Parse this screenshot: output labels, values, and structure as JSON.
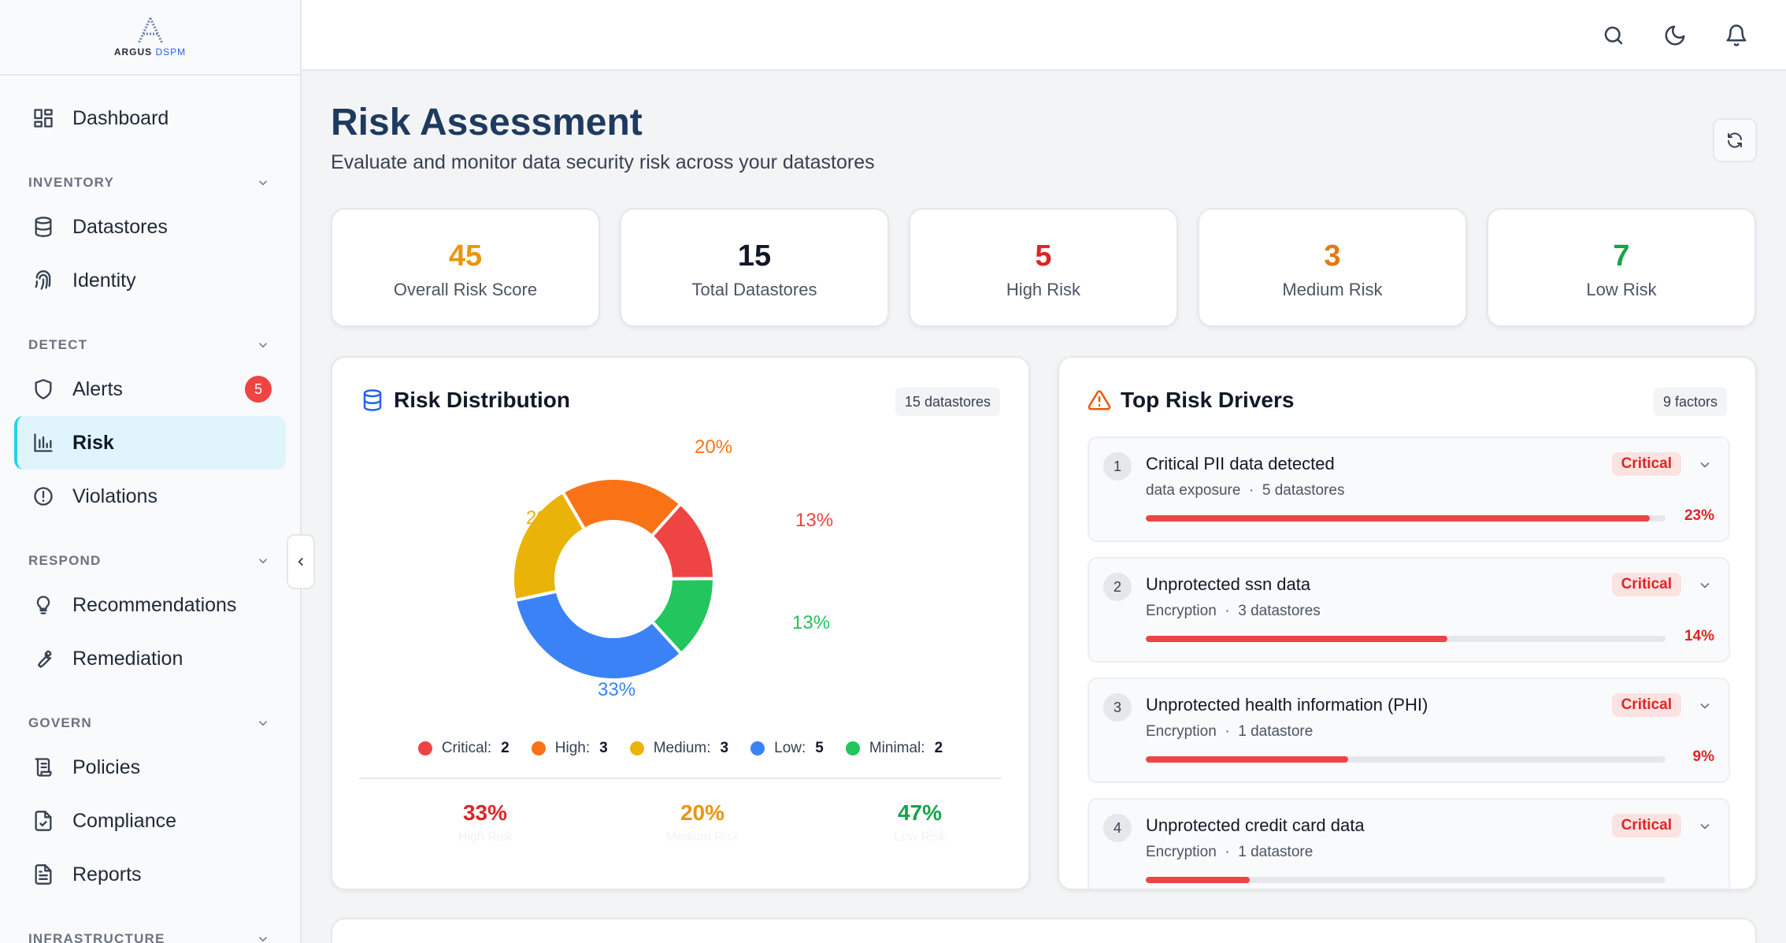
{
  "brand": {
    "name": "ARGUS",
    "suffix": "DSPM"
  },
  "sidebar": {
    "dashboard": {
      "label": "Dashboard"
    },
    "sections": [
      {
        "title": "INVENTORY",
        "items": [
          {
            "label": "Datastores",
            "icon": "database-icon"
          },
          {
            "label": "Identity",
            "icon": "fingerprint-icon"
          }
        ]
      },
      {
        "title": "DETECT",
        "items": [
          {
            "label": "Alerts",
            "icon": "shield-icon",
            "badge": "5"
          },
          {
            "label": "Risk",
            "icon": "bar-chart-icon",
            "active": true
          },
          {
            "label": "Violations",
            "icon": "alert-circle-icon"
          }
        ]
      },
      {
        "title": "RESPOND",
        "items": [
          {
            "label": "Recommendations",
            "icon": "lightbulb-icon"
          },
          {
            "label": "Remediation",
            "icon": "wrench-icon"
          }
        ]
      },
      {
        "title": "GOVERN",
        "items": [
          {
            "label": "Policies",
            "icon": "scroll-icon"
          },
          {
            "label": "Compliance",
            "icon": "file-check-icon"
          },
          {
            "label": "Reports",
            "icon": "file-text-icon"
          }
        ]
      },
      {
        "title": "INFRASTRUCTURE",
        "items": []
      }
    ]
  },
  "header": {
    "icons": [
      "search-icon",
      "moon-icon",
      "bell-icon"
    ]
  },
  "page": {
    "title": "Risk Assessment",
    "subtitle": "Evaluate and monitor data security risk across your datastores"
  },
  "stats": [
    {
      "value": "45",
      "label": "Overall Risk Score",
      "color": "#e89611"
    },
    {
      "value": "15",
      "label": "Total Datastores",
      "color": "#111827"
    },
    {
      "value": "5",
      "label": "High Risk",
      "color": "#dc2626"
    },
    {
      "value": "3",
      "label": "Medium Risk",
      "color": "#e07a10"
    },
    {
      "value": "7",
      "label": "Low Risk",
      "color": "#16a34a"
    }
  ],
  "distribution": {
    "title": "Risk Distribution",
    "count_label": "15 datastores",
    "legend": [
      {
        "name": "Critical:",
        "value": "2",
        "color": "#ef4444"
      },
      {
        "name": "High:",
        "value": "3",
        "color": "#f97316"
      },
      {
        "name": "Medium:",
        "value": "3",
        "color": "#eab308"
      },
      {
        "name": "Low:",
        "value": "5",
        "color": "#3b82f6"
      },
      {
        "name": "Minimal:",
        "value": "2",
        "color": "#22c55e"
      }
    ],
    "slice_labels": {
      "high": "20%",
      "critical": "13%",
      "minimal": "13%",
      "low": "33%",
      "medium": "20%"
    },
    "summary": [
      {
        "value": "33%",
        "label": "High Risk",
        "color": "#dc2626"
      },
      {
        "value": "20%",
        "label": "Medium Risk",
        "color": "#e89611"
      },
      {
        "value": "47%",
        "label": "Low Risk",
        "color": "#16a34a"
      }
    ]
  },
  "chart_data": {
    "type": "pie",
    "categories": [
      "Critical",
      "High",
      "Medium",
      "Low",
      "Minimal"
    ],
    "values": [
      2,
      3,
      3,
      5,
      2
    ],
    "colors": [
      "#ef4444",
      "#f97316",
      "#eab308",
      "#3b82f6",
      "#22c55e"
    ],
    "title": "Risk Distribution"
  },
  "drivers": {
    "title": "Top Risk Drivers",
    "count_label": "9 factors",
    "items": [
      {
        "index": "1",
        "title": "Critical PII data detected",
        "category": "data exposure",
        "datastores": "5 datastores",
        "severity": "Critical",
        "percent": "23%",
        "fill": 0.97
      },
      {
        "index": "2",
        "title": "Unprotected ssn data",
        "category": "Encryption",
        "datastores": "3 datastores",
        "severity": "Critical",
        "percent": "14%",
        "fill": 0.58
      },
      {
        "index": "3",
        "title": "Unprotected health information (PHI)",
        "category": "Encryption",
        "datastores": "1 datastore",
        "severity": "Critical",
        "percent": "9%",
        "fill": 0.39
      },
      {
        "index": "4",
        "title": "Unprotected credit card data",
        "category": "Encryption",
        "datastores": "1 datastore",
        "severity": "Critical",
        "percent": "",
        "fill": 0.2
      }
    ]
  },
  "meta_separator": "·"
}
